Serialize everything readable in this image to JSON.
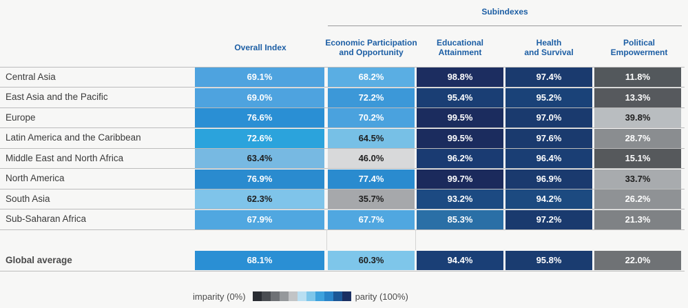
{
  "chart_data": {
    "type": "table",
    "group_header": "Subindexes",
    "columns": [
      "Overall Index",
      "Economic Participation\nand Opportunity",
      "Educational\nAttainment",
      "Health\nand Survival",
      "Political\nEmpowerment"
    ],
    "rows": [
      {
        "region": "Central Asia",
        "values": [
          "69.1%",
          "68.2%",
          "98.8%",
          "97.4%",
          "11.8%"
        ]
      },
      {
        "region": "East Asia and the Pacific",
        "values": [
          "69.0%",
          "72.2%",
          "95.4%",
          "95.2%",
          "13.3%"
        ]
      },
      {
        "region": "Europe",
        "values": [
          "76.6%",
          "70.2%",
          "99.5%",
          "97.0%",
          "39.8%"
        ]
      },
      {
        "region": "Latin America and the Caribbean",
        "values": [
          "72.6%",
          "64.5%",
          "99.5%",
          "97.6%",
          "28.7%"
        ]
      },
      {
        "region": "Middle East and North Africa",
        "values": [
          "63.4%",
          "46.0%",
          "96.2%",
          "96.4%",
          "15.1%"
        ]
      },
      {
        "region": "North America",
        "values": [
          "76.9%",
          "77.4%",
          "99.7%",
          "96.9%",
          "33.7%"
        ]
      },
      {
        "region": "South Asia",
        "values": [
          "62.3%",
          "35.7%",
          "93.2%",
          "94.2%",
          "26.2%"
        ]
      },
      {
        "region": "Sub-Saharan Africa",
        "values": [
          "67.9%",
          "67.7%",
          "85.3%",
          "97.2%",
          "21.3%"
        ]
      }
    ],
    "global": {
      "region": "Global average",
      "values": [
        "68.1%",
        "60.3%",
        "94.4%",
        "95.8%",
        "22.0%"
      ]
    },
    "cell_colors": [
      [
        "#4ea3df",
        "#5aaee3",
        "#1c2d60",
        "#1a3a6e",
        "#53585c"
      ],
      [
        "#4ea3df",
        "#3c98d8",
        "#1a3e74",
        "#1a4278",
        "#56595d"
      ],
      [
        "#2a8fd4",
        "#4aa2de",
        "#1b2c5e",
        "#1a3a6e",
        "#b9bdc0"
      ],
      [
        "#2ba3dc",
        "#77c0e6",
        "#1b2c5e",
        "#1a3a6e",
        "#8a8d90"
      ],
      [
        "#77b9e2",
        "#d8d9da",
        "#1a3b72",
        "#1a3e74",
        "#56595c"
      ],
      [
        "#2a8bcf",
        "#2a8bcf",
        "#1b2a5c",
        "#1a3a6e",
        "#a8abae"
      ],
      [
        "#7fc4ea",
        "#a6a8ab",
        "#1c4a82",
        "#1c4a80",
        "#8f9295"
      ],
      [
        "#50a7e0",
        "#50a7e0",
        "#2a6fa6",
        "#1a3a6e",
        "#7f8285"
      ]
    ],
    "global_colors": [
      "#2a8fd4",
      "#7ec6ea",
      "#1a3f76",
      "#1a3c70",
      "#6f7275"
    ],
    "text_colors": [
      [
        "#ffffff",
        "#ffffff",
        "#ffffff",
        "#ffffff",
        "#ffffff"
      ],
      [
        "#ffffff",
        "#ffffff",
        "#ffffff",
        "#ffffff",
        "#ffffff"
      ],
      [
        "#ffffff",
        "#ffffff",
        "#ffffff",
        "#ffffff",
        "#1e1e1e"
      ],
      [
        "#ffffff",
        "#1e1e1e",
        "#ffffff",
        "#ffffff",
        "#ffffff"
      ],
      [
        "#1e1e1e",
        "#1e1e1e",
        "#ffffff",
        "#ffffff",
        "#ffffff"
      ],
      [
        "#ffffff",
        "#ffffff",
        "#ffffff",
        "#ffffff",
        "#1e1e1e"
      ],
      [
        "#1e1e1e",
        "#1e1e1e",
        "#ffffff",
        "#ffffff",
        "#ffffff"
      ],
      [
        "#ffffff",
        "#ffffff",
        "#ffffff",
        "#ffffff",
        "#ffffff"
      ]
    ],
    "global_text_colors": [
      "#ffffff",
      "#1e1e1e",
      "#ffffff",
      "#ffffff",
      "#ffffff"
    ],
    "legend": {
      "left_label": "imparity (0%)",
      "right_label": "parity (100%)",
      "colors": [
        "#2a2d33",
        "#4a4d52",
        "#6e7175",
        "#95989b",
        "#c2c4c6",
        "#b9dff2",
        "#7ec6ea",
        "#3ea2dd",
        "#2a84c8",
        "#1c5796",
        "#1a2f62"
      ]
    }
  }
}
